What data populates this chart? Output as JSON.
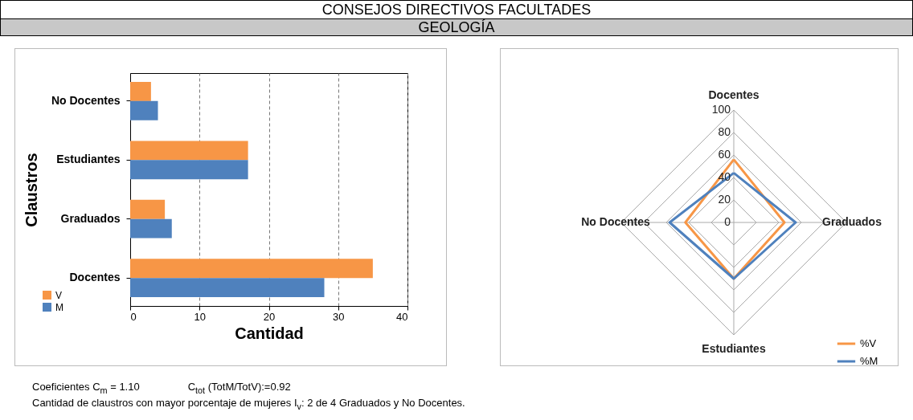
{
  "chart_data": [
    {
      "type": "other",
      "title": "CONSEJOS DIRECTIVOS FACULTADES",
      "subtitle": "GEOLOGÍA"
    },
    {
      "type": "bar",
      "orientation": "horizontal",
      "xlabel": "Cantidad",
      "ylabel": "Claustros",
      "categories": [
        "No Docentes",
        "Estudiantes",
        "Graduados",
        "Docentes"
      ],
      "series": [
        {
          "name": "V",
          "color": "#f79646",
          "values": [
            3,
            17,
            5,
            35
          ]
        },
        {
          "name": "M",
          "color": "#4f81bd",
          "values": [
            4,
            17,
            6,
            28
          ]
        }
      ],
      "xlim": [
        0,
        40
      ],
      "xticks": [
        0,
        10,
        20,
        30,
        40
      ],
      "grid": "x",
      "legend": "bottom left",
      "annotations": [
        "Coeficientes C$_{m}$ = 1.10",
        "C$_{tot}$ (TotM/TotV):=0.92",
        "Cantidad de claustros con mayor porcentaje de mujeres I$_{v}$:  2 de 4  Graduados y No Docentes."
      ]
    },
    {
      "type": "radar",
      "categories": [
        "Docentes",
        "Graduados",
        "Estudiantes",
        "No Docentes"
      ],
      "series": [
        {
          "name": "%V",
          "color": "#f79646",
          "values": [
            56,
            45,
            50,
            43
          ]
        },
        {
          "name": "%M",
          "color": "#4f81bd",
          "values": [
            44,
            55,
            50,
            57
          ]
        }
      ],
      "ylim": [
        0,
        100
      ],
      "yticks": [
        0,
        20,
        40,
        60,
        80,
        100
      ],
      "grid": true,
      "legend": "bottom right"
    }
  ]
}
